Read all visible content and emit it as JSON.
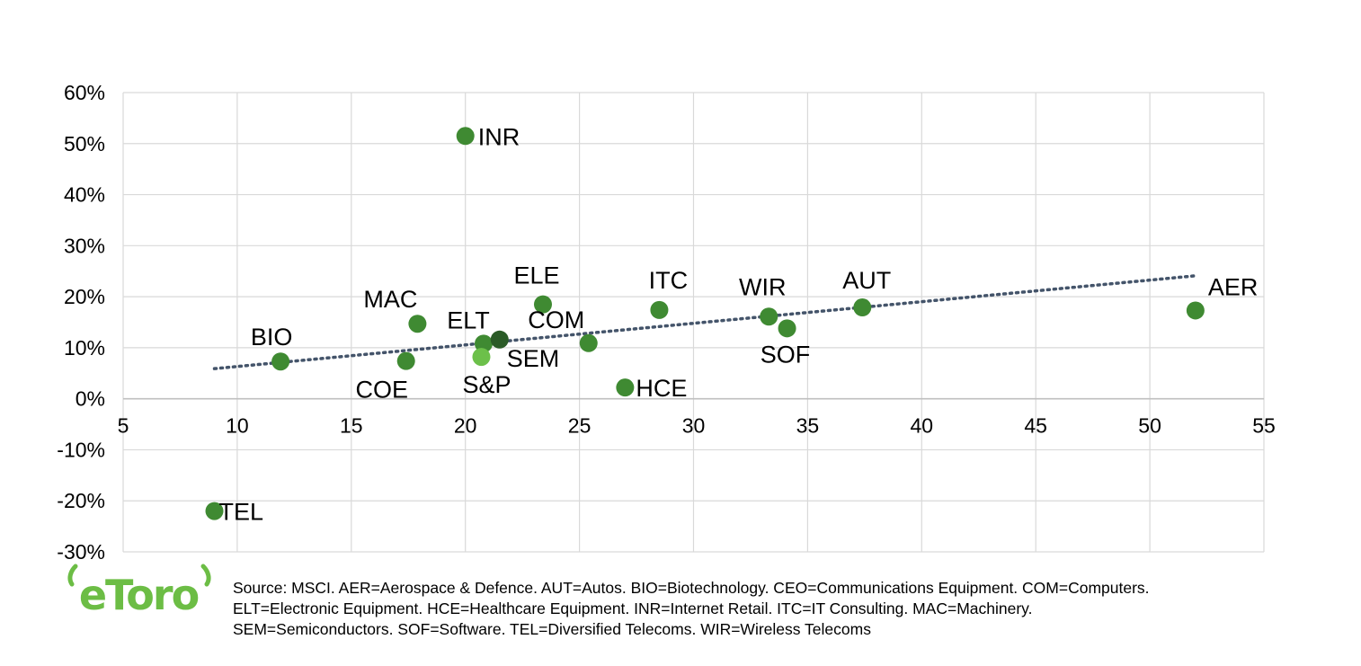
{
  "chart_data": {
    "type": "scatter",
    "title": "",
    "xlabel": "",
    "ylabel": "",
    "xlim": [
      5,
      55
    ],
    "ylim": [
      -30,
      60
    ],
    "x_ticks": [
      5,
      10,
      15,
      20,
      25,
      30,
      35,
      40,
      45,
      50,
      55
    ],
    "y_ticks": [
      60,
      50,
      40,
      30,
      20,
      10,
      0,
      -10,
      -20,
      -30
    ],
    "y_tick_labels": [
      "60%",
      "50%",
      "40%",
      "30%",
      "20%",
      "10%",
      "0%",
      "-10%",
      "-20%",
      "-30%"
    ],
    "grid": true,
    "points": [
      {
        "label": "INR",
        "x": 20.0,
        "y": 51.5,
        "color": "#3f8a32"
      },
      {
        "label": "BIO",
        "x": 11.9,
        "y": 7.3,
        "color": "#3f8a32"
      },
      {
        "label": "MAC",
        "x": 17.9,
        "y": 14.7,
        "color": "#3f8a32"
      },
      {
        "label": "COE",
        "x": 17.4,
        "y": 7.4,
        "color": "#3f8a32"
      },
      {
        "label": "ELT",
        "x": 20.8,
        "y": 10.8,
        "color": "#3f8a32"
      },
      {
        "label": "S&P",
        "x": 20.7,
        "y": 8.2,
        "color": "#6cc04a"
      },
      {
        "label": "SEM",
        "x": 21.5,
        "y": 11.6,
        "color": "#2b5b27"
      },
      {
        "label": "ELE",
        "x": 23.4,
        "y": 18.5,
        "color": "#3f8a32"
      },
      {
        "label": "COM",
        "x": 25.4,
        "y": 10.9,
        "color": "#3f8a32"
      },
      {
        "label": "HCE",
        "x": 27.0,
        "y": 2.2,
        "color": "#3f8a32"
      },
      {
        "label": "ITC",
        "x": 28.5,
        "y": 17.4,
        "color": "#3f8a32"
      },
      {
        "label": "WIR",
        "x": 33.3,
        "y": 16.1,
        "color": "#3f8a32"
      },
      {
        "label": "SOF",
        "x": 34.1,
        "y": 13.8,
        "color": "#3f8a32"
      },
      {
        "label": "AUT",
        "x": 37.4,
        "y": 17.9,
        "color": "#3f8a32"
      },
      {
        "label": "AER",
        "x": 52.0,
        "y": 17.3,
        "color": "#3f8a32"
      },
      {
        "label": "TEL",
        "x": 9.0,
        "y": -22.0,
        "color": "#3f8a32"
      }
    ],
    "trendline": {
      "style": "dotted",
      "color": "#44546a",
      "x": [
        9.0,
        52.0
      ],
      "y": [
        5.9,
        24.1
      ]
    }
  },
  "logo": {
    "text": "eToro",
    "color": "#6cbd45"
  },
  "source_lines": [
    "Source: MSCI. AER=Aerospace & Defence. AUT=Autos. BIO=Biotechnology. CEO=Communications Equipment. COM=Computers.",
    "ELT=Electronic Equipment. HCE=Healthcare Equipment. INR=Internet Retail. ITC=IT Consulting. MAC=Machinery.",
    "SEM=Semiconductors. SOF=Software. TEL=Diversified Telecoms. WIR=Wireless Telecoms"
  ]
}
